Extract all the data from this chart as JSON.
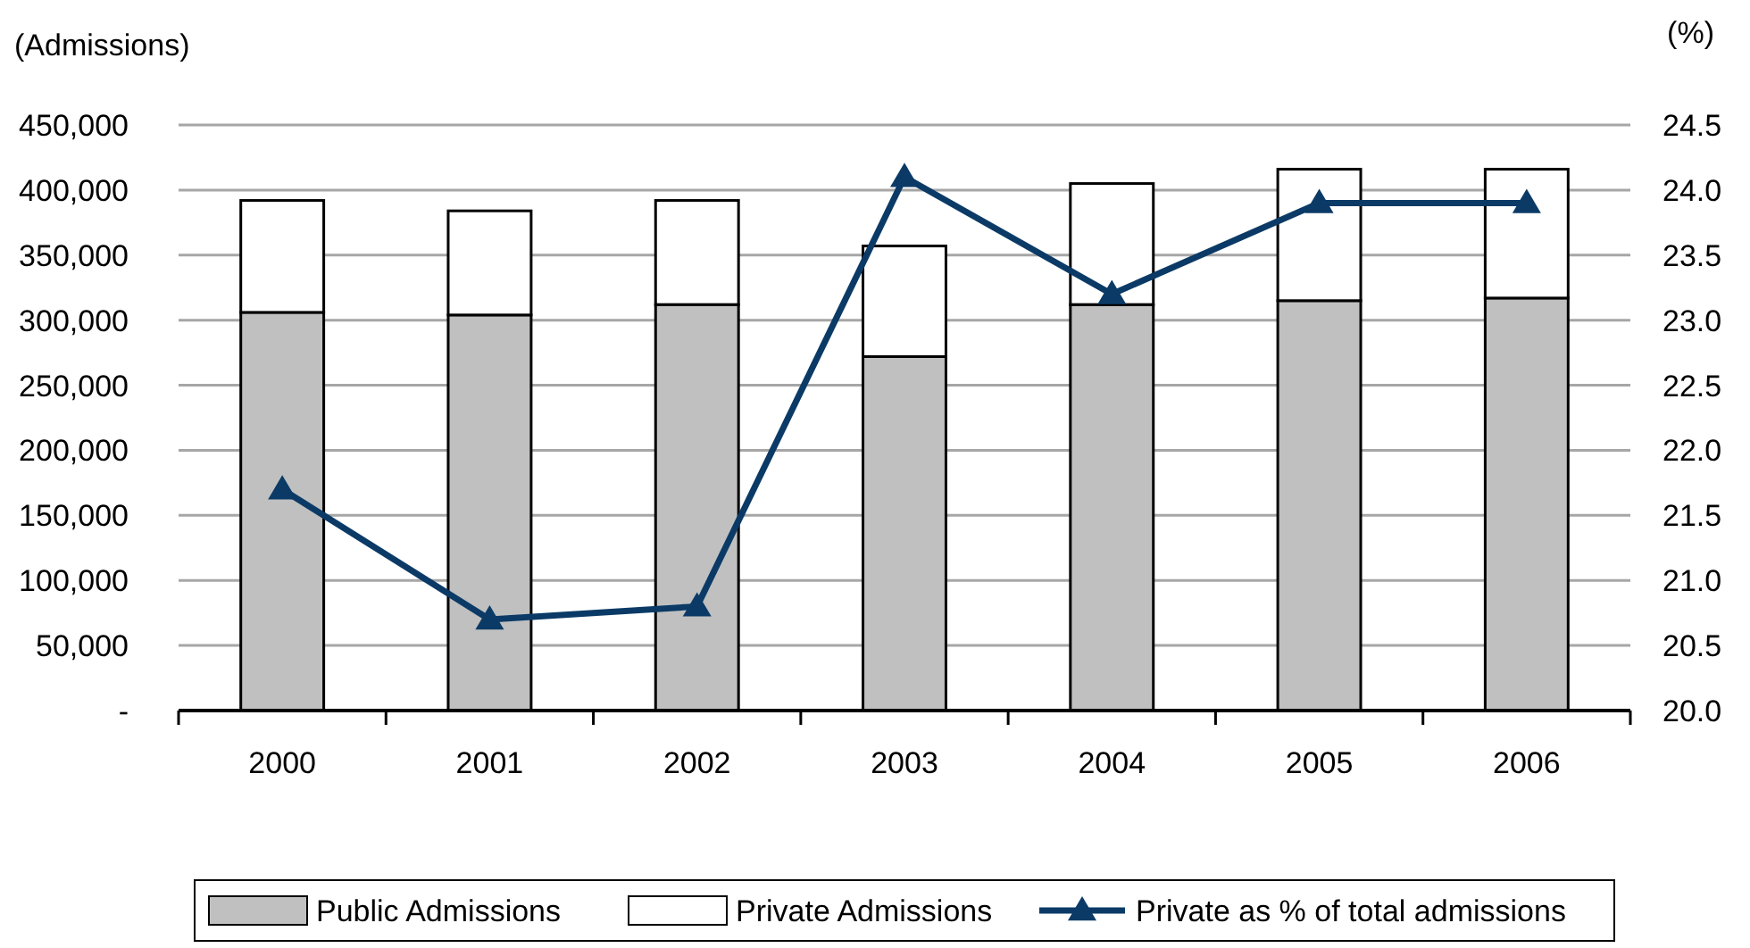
{
  "chart_data": {
    "type": "bar",
    "stacked": true,
    "ylabel": "(Admissions)",
    "y2label": "(%)",
    "categories": [
      "2000",
      "2001",
      "2002",
      "2003",
      "2004",
      "2005",
      "2006"
    ],
    "series": [
      {
        "name": "Public Admissions",
        "color": "#c0c0c0",
        "values": [
          306000,
          304000,
          312000,
          272000,
          312000,
          315000,
          317000
        ]
      },
      {
        "name": "Private Admissions",
        "color": "#ffffff",
        "values": [
          86000,
          80000,
          80000,
          85000,
          93000,
          101000,
          99000
        ]
      },
      {
        "name": "Private as % of total admissions",
        "type": "line",
        "axis": "y2",
        "color": "#0b3a66",
        "marker": "triangle",
        "values": [
          21.7,
          20.7,
          20.8,
          24.1,
          23.2,
          23.9,
          23.9
        ]
      }
    ],
    "ylim": [
      0,
      450000
    ],
    "yticks": [
      {
        "value": 0,
        "label": "-"
      },
      {
        "value": 50000,
        "label": "50,000"
      },
      {
        "value": 100000,
        "label": "100,000"
      },
      {
        "value": 150000,
        "label": "150,000"
      },
      {
        "value": 200000,
        "label": "200,000"
      },
      {
        "value": 250000,
        "label": "250,000"
      },
      {
        "value": 300000,
        "label": "300,000"
      },
      {
        "value": 350000,
        "label": "350,000"
      },
      {
        "value": 400000,
        "label": "400,000"
      },
      {
        "value": 450000,
        "label": "450,000"
      }
    ],
    "y2lim": [
      20,
      24.5
    ],
    "y2ticks": [
      {
        "value": 20,
        "label": "20.0"
      },
      {
        "value": 20.5,
        "label": "20.5"
      },
      {
        "value": 21,
        "label": "21.0"
      },
      {
        "value": 21.5,
        "label": "21.5"
      },
      {
        "value": 22,
        "label": "22.0"
      },
      {
        "value": 22.5,
        "label": "22.5"
      },
      {
        "value": 23,
        "label": "23.0"
      },
      {
        "value": 23.5,
        "label": "23.5"
      },
      {
        "value": 24,
        "label": "24.0"
      },
      {
        "value": 24.5,
        "label": "24.5"
      }
    ],
    "grid": "y",
    "legend": "bottom"
  }
}
